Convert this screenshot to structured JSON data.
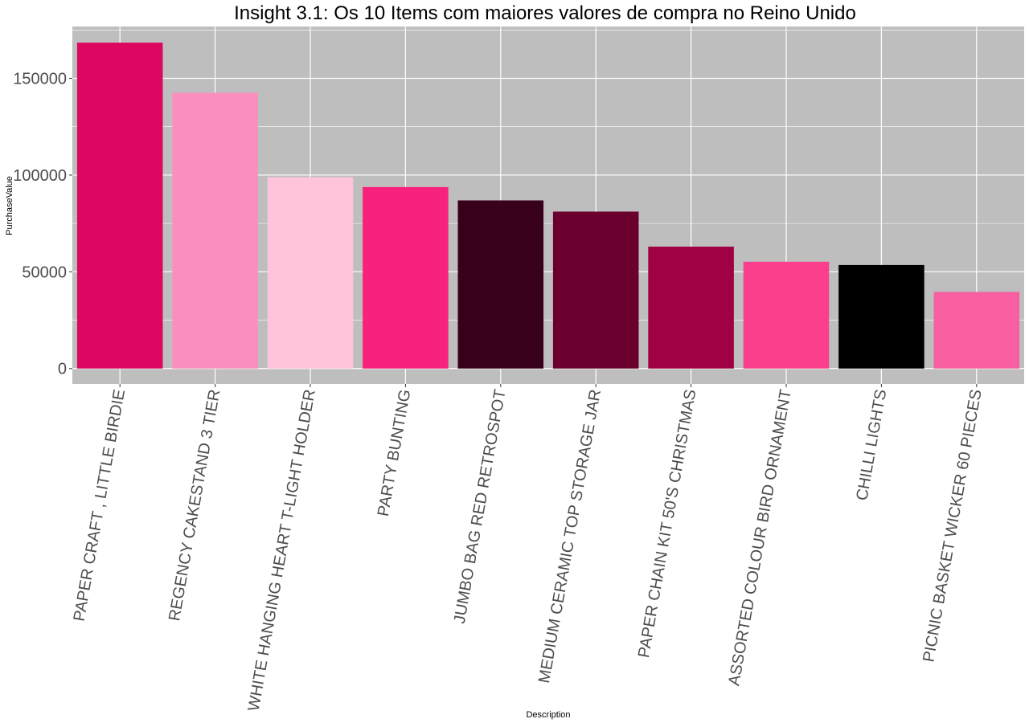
{
  "chart_data": {
    "type": "bar",
    "title": "Insight 3.1: Os 10 Items com maiores valores de compra no Reino Unido",
    "xlabel": "Description",
    "ylabel": "PurchaseValue",
    "categories": [
      "PAPER CRAFT , LITTLE BIRDIE",
      "REGENCY CAKESTAND 3 TIER",
      "WHITE HANGING HEART T-LIGHT HOLDER",
      "PARTY BUNTING",
      "JUMBO BAG RED RETROSPOT",
      "MEDIUM CERAMIC TOP STORAGE JAR",
      "PAPER CHAIN KIT 50'S CHRISTMAS",
      "ASSORTED COLOUR BIRD ORNAMENT",
      "CHILLI LIGHTS",
      "PICNIC BASKET WICKER 60 PIECES"
    ],
    "values": [
      168470,
      142593,
      98900,
      93800,
      86900,
      81100,
      63000,
      55200,
      53500,
      39600
    ],
    "colors": [
      "#dd0660",
      "#fa8fbe",
      "#fdc4dc",
      "#f8217b",
      "#38001a",
      "#6b002e",
      "#a00044",
      "#fb3f8c",
      "#000000",
      "#f85fa0"
    ],
    "yticks": [
      0,
      50000,
      100000,
      150000
    ],
    "ytick_labels": [
      "0",
      "50000",
      "100000",
      "150000"
    ],
    "ylim": [
      -8000,
      176800
    ],
    "grid": true,
    "panel_background": "#bebebe",
    "legend": "none"
  }
}
